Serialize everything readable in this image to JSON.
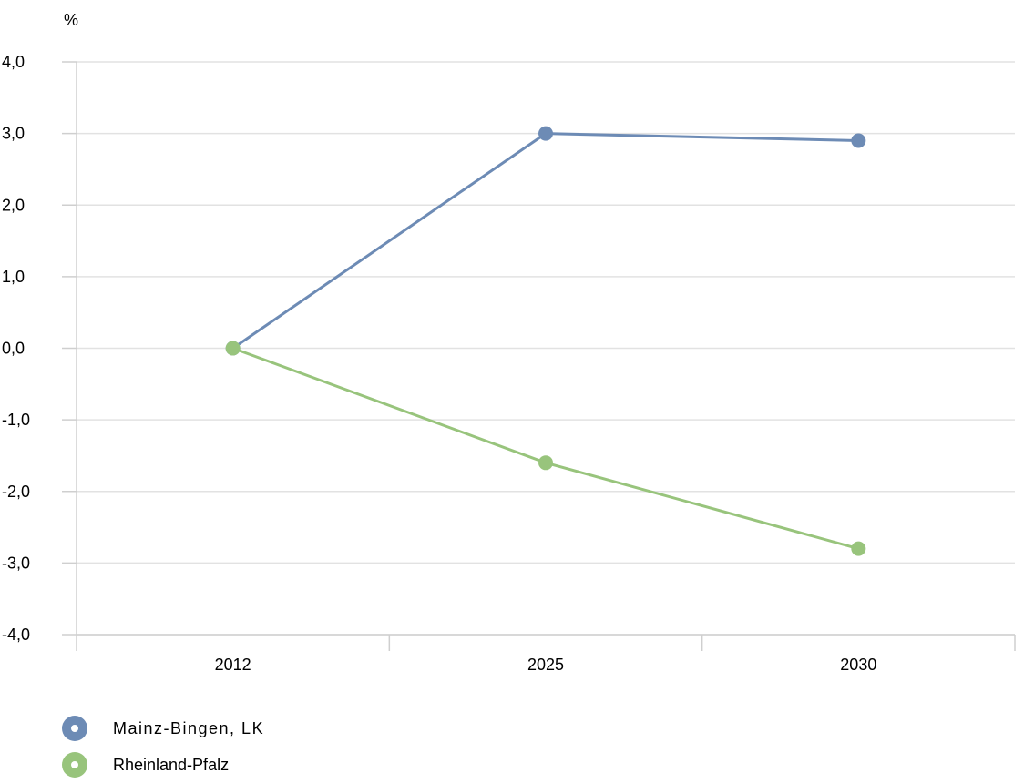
{
  "chart_data": {
    "type": "line",
    "y_unit": "%",
    "categories": [
      "2012",
      "2025",
      "2030"
    ],
    "ylim": [
      -4.0,
      4.0
    ],
    "yticks": [
      "4,0",
      "3,0",
      "2,0",
      "1,0",
      "0,0",
      "-1,0",
      "-2,0",
      "-3,0",
      "-4,0"
    ],
    "ytick_values": [
      4,
      3,
      2,
      1,
      0,
      -1,
      -2,
      -3,
      -4
    ],
    "grid": true,
    "legend_position": "bottom-left",
    "series": [
      {
        "name": "Mainz-Bingen, LK",
        "values": [
          0.0,
          3.0,
          2.9
        ],
        "color": "#6d8bb5"
      },
      {
        "name": "Rheinland-Pfalz",
        "values": [
          0.0,
          -1.6,
          -2.8
        ],
        "color": "#98c47c"
      }
    ]
  }
}
